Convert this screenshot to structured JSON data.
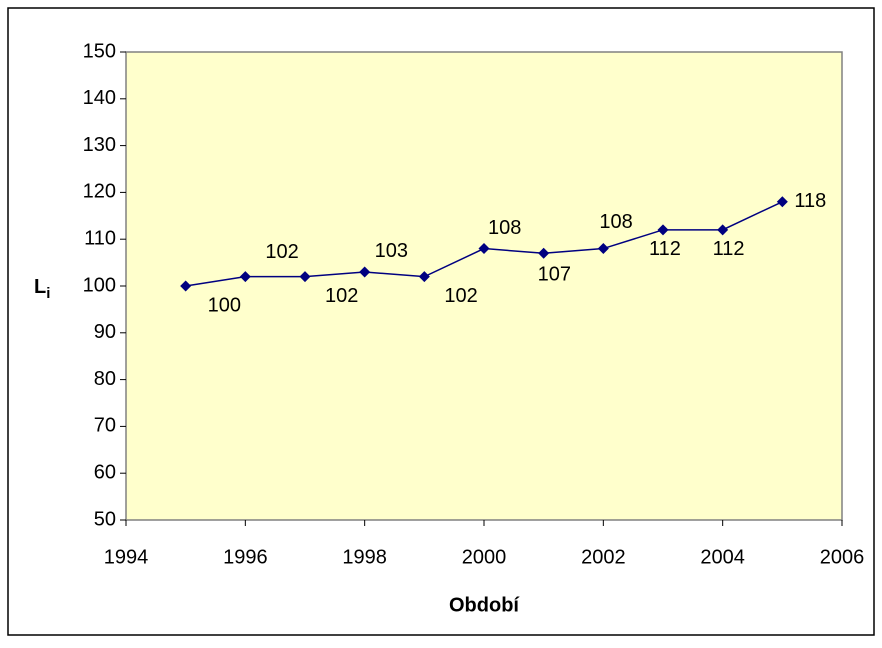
{
  "chart_data": {
    "type": "line",
    "x_label": "Období",
    "y_label": "L",
    "y_label_sub": "i",
    "x": [
      1995,
      1996,
      1997,
      1998,
      1999,
      2000,
      2001,
      2002,
      2003,
      2004,
      2005
    ],
    "series": [
      {
        "color": "#000080",
        "values": [
          100,
          102,
          102,
          103,
          102,
          108,
          107,
          108,
          112,
          112,
          118
        ]
      }
    ],
    "xlim": [
      1994,
      2006
    ],
    "xticks": [
      1994,
      1996,
      1998,
      2000,
      2002,
      2004,
      2006
    ],
    "ylim": [
      50,
      150
    ],
    "yticks": [
      50,
      60,
      70,
      80,
      90,
      100,
      110,
      120,
      130,
      140,
      150
    ],
    "grid": false,
    "plot_background": "#ffffcc"
  }
}
